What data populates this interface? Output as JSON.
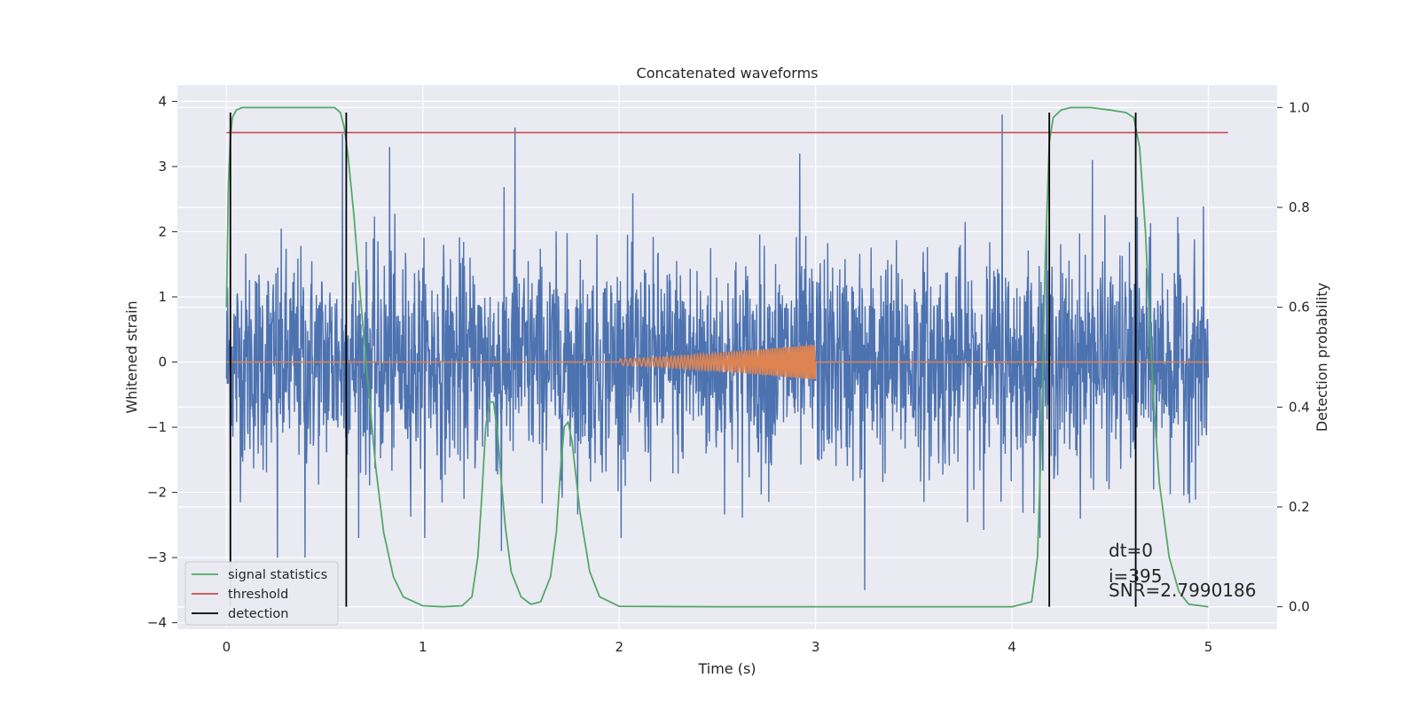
{
  "chart_data": {
    "type": "line",
    "title": "Concatenated waveforms",
    "xlabel": "Time (s)",
    "ylabel": "Whitened strain",
    "y2label": "Detection probability",
    "xlim": [
      -0.25,
      5.35
    ],
    "ylim": [
      -4.1,
      4.25
    ],
    "y2lim": [
      -0.045,
      1.045
    ],
    "xticks": [
      "0",
      "1",
      "2",
      "3",
      "4",
      "5"
    ],
    "xtick_values": [
      0,
      1,
      2,
      3,
      4,
      5
    ],
    "yticks": [
      "−4",
      "−3",
      "−2",
      "−1",
      "0",
      "1",
      "2",
      "3",
      "4"
    ],
    "ytick_values": [
      -4,
      -3,
      -2,
      -1,
      0,
      1,
      2,
      3,
      4
    ],
    "y2ticks": [
      "0.0",
      "0.2",
      "0.4",
      "0.6",
      "0.8",
      "1.0"
    ],
    "y2tick_values": [
      0,
      0.2,
      0.4,
      0.6,
      0.8,
      1.0
    ],
    "grid": true,
    "legend_placement": "lower-left",
    "series": [
      {
        "name": "",
        "color": "#4c72b0",
        "axis": "left",
        "description_only": "whitened noise strain, 0 to 5 s",
        "x_range": [
          0,
          5
        ],
        "amplitude_typical": 1.6,
        "peaks": [
          [
            0.59,
            3.5
          ],
          [
            0.83,
            3.3
          ],
          [
            1.47,
            3.6
          ],
          [
            2.92,
            3.2
          ],
          [
            3.95,
            3.8
          ],
          [
            4.41,
            3.1
          ],
          [
            0.26,
            -3.0
          ],
          [
            1.4,
            -2.9
          ],
          [
            3.25,
            -3.5
          ],
          [
            0.4,
            -3.0
          ]
        ]
      },
      {
        "name": "",
        "color": "#dd8452",
        "axis": "left",
        "x_range": [
          0,
          5
        ],
        "chirp_start": 2.0,
        "chirp_end": 3.0,
        "chirp_amp_start": 0.05,
        "chirp_amp_end": 0.27
      },
      {
        "name": "signal statistics",
        "color": "#55a868",
        "axis": "right",
        "x": [
          0.0,
          0.01,
          0.02,
          0.03,
          0.05,
          0.08,
          0.12,
          0.2,
          0.3,
          0.4,
          0.5,
          0.55,
          0.58,
          0.6,
          0.62,
          0.65,
          0.68,
          0.72,
          0.76,
          0.8,
          0.85,
          0.9,
          1.0,
          1.1,
          1.2,
          1.25,
          1.28,
          1.3,
          1.32,
          1.34,
          1.36,
          1.38,
          1.4,
          1.42,
          1.45,
          1.5,
          1.55,
          1.6,
          1.65,
          1.68,
          1.7,
          1.72,
          1.74,
          1.76,
          1.8,
          1.85,
          1.9,
          2.0,
          2.5,
          3.0,
          3.5,
          4.0,
          4.1,
          4.13,
          4.15,
          4.17,
          4.19,
          4.21,
          4.25,
          4.3,
          4.4,
          4.5,
          4.58,
          4.62,
          4.65,
          4.68,
          4.7,
          4.72,
          4.75,
          4.8,
          4.85,
          4.9,
          5.0
        ],
        "y": [
          0.6,
          0.85,
          0.94,
          0.98,
          0.995,
          1.0,
          1.0,
          1.0,
          1.0,
          1.0,
          1.0,
          1.0,
          0.99,
          0.96,
          0.9,
          0.78,
          0.63,
          0.45,
          0.28,
          0.15,
          0.06,
          0.02,
          0.002,
          0.0,
          0.002,
          0.02,
          0.1,
          0.22,
          0.36,
          0.41,
          0.41,
          0.35,
          0.25,
          0.16,
          0.07,
          0.02,
          0.005,
          0.01,
          0.06,
          0.15,
          0.27,
          0.36,
          0.37,
          0.33,
          0.19,
          0.07,
          0.02,
          0.001,
          0.0,
          0.0,
          0.0,
          0.0,
          0.01,
          0.1,
          0.35,
          0.7,
          0.93,
          0.98,
          0.995,
          1.0,
          1.0,
          0.995,
          0.99,
          0.98,
          0.92,
          0.75,
          0.58,
          0.42,
          0.25,
          0.1,
          0.03,
          0.005,
          0.0
        ]
      },
      {
        "name": "threshold",
        "color": "#c44e52",
        "axis": "right",
        "x": [
          0,
          5.1
        ],
        "y": [
          0.95,
          0.95
        ]
      },
      {
        "name": "detection",
        "color": "#000000",
        "axis": "right",
        "vlines": [
          0.02,
          0.61,
          4.19,
          4.63
        ],
        "ymin": 0.0,
        "ymax": 0.99
      }
    ],
    "annotations": [
      "dt=0",
      "i=395",
      "SNR=2.7990186"
    ]
  }
}
